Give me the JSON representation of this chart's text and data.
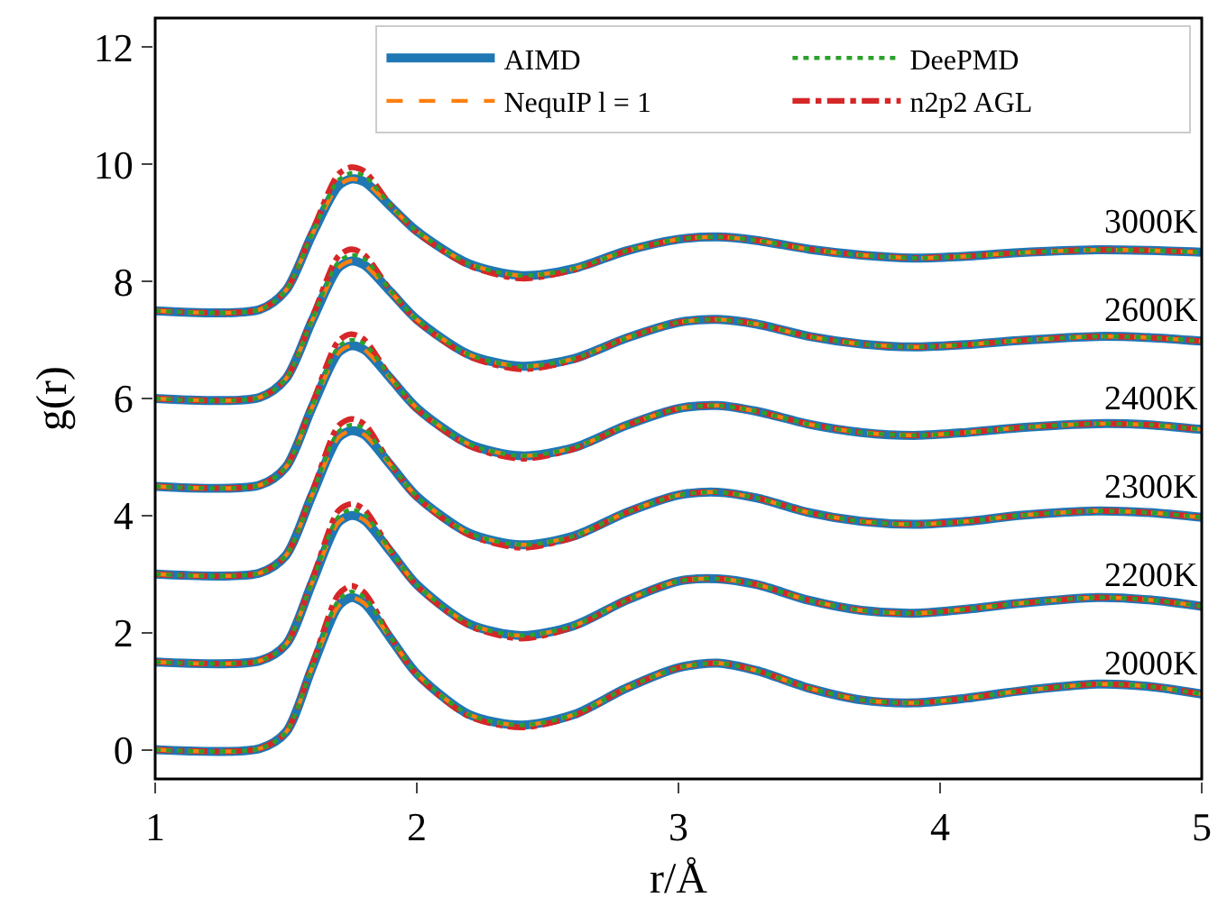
{
  "chart_data": {
    "type": "line",
    "xlabel": "r/Å",
    "ylabel": "g(r)",
    "x": [
      1.0,
      1.4,
      1.5,
      1.6,
      1.7,
      1.75,
      1.8,
      1.9,
      2.0,
      2.2,
      2.4,
      2.6,
      2.8,
      3.0,
      3.15,
      3.3,
      3.5,
      3.7,
      3.9,
      4.1,
      4.3,
      4.6,
      4.8,
      5.0
    ],
    "xlim": [
      1,
      5
    ],
    "xticks": [
      1,
      2,
      3,
      4,
      5
    ],
    "ylim": [
      -0.5,
      12.5
    ],
    "yticks": [
      0,
      2,
      4,
      6,
      8,
      10,
      12
    ],
    "legend": "top right",
    "marker": "none",
    "series": [
      {
        "name": "AIMD",
        "color": "#1f77b4",
        "line_style": "solid",
        "values": [
          0,
          0.02,
          0.3,
          1.4,
          2.45,
          2.6,
          2.5,
          1.9,
          1.3,
          0.6,
          0.42,
          0.6,
          1.05,
          1.4,
          1.48,
          1.35,
          1.05,
          0.85,
          0.8,
          0.88,
          1.0,
          1.12,
          1.08,
          0.95
        ]
      },
      {
        "color": "#1f77b4",
        "line_style": "solid",
        "values": [
          1.5,
          1.52,
          1.8,
          2.85,
          3.88,
          4.0,
          3.92,
          3.38,
          2.82,
          2.15,
          1.95,
          2.12,
          2.55,
          2.88,
          2.92,
          2.82,
          2.55,
          2.38,
          2.33,
          2.4,
          2.5,
          2.6,
          2.56,
          2.45
        ]
      },
      {
        "color": "#1f77b4",
        "line_style": "solid",
        "values": [
          3,
          3.02,
          3.32,
          4.35,
          5.33,
          5.45,
          5.38,
          4.86,
          4.33,
          3.7,
          3.5,
          3.65,
          4.05,
          4.35,
          4.4,
          4.3,
          4.05,
          3.9,
          3.85,
          3.9,
          4.0,
          4.08,
          4.05,
          3.97
        ]
      },
      {
        "color": "#1f77b4",
        "line_style": "solid",
        "values": [
          4.5,
          4.52,
          4.83,
          5.85,
          6.78,
          6.9,
          6.83,
          6.34,
          5.84,
          5.22,
          5.02,
          5.16,
          5.54,
          5.83,
          5.88,
          5.78,
          5.56,
          5.42,
          5.37,
          5.42,
          5.5,
          5.57,
          5.55,
          5.47
        ]
      },
      {
        "color": "#1f77b4",
        "line_style": "solid",
        "values": [
          6,
          6.02,
          6.34,
          7.33,
          8.23,
          8.35,
          8.28,
          7.82,
          7.35,
          6.75,
          6.55,
          6.68,
          7.03,
          7.3,
          7.35,
          7.27,
          7.06,
          6.93,
          6.88,
          6.92,
          6.99,
          7.06,
          7.04,
          6.98
        ]
      },
      {
        "color": "#1f77b4",
        "line_style": "solid",
        "values": [
          7.5,
          7.52,
          7.85,
          8.8,
          9.63,
          9.75,
          9.7,
          9.28,
          8.86,
          8.3,
          8.1,
          8.22,
          8.52,
          8.72,
          8.76,
          8.7,
          8.55,
          8.45,
          8.4,
          8.43,
          8.49,
          8.54,
          8.53,
          8.5
        ]
      },
      {
        "name": "DeePMD",
        "color": "#2ca02c",
        "line_style": "dotted",
        "values": [
          0,
          0.02,
          0.3,
          1.42,
          2.55,
          2.7,
          2.6,
          1.92,
          1.3,
          0.6,
          0.42,
          0.6,
          1.05,
          1.4,
          1.48,
          1.35,
          1.05,
          0.85,
          0.8,
          0.88,
          1.0,
          1.12,
          1.08,
          0.95
        ]
      },
      {
        "color": "#2ca02c",
        "line_style": "dotted",
        "values": [
          1.5,
          1.52,
          1.8,
          2.87,
          3.98,
          4.1,
          4.02,
          3.4,
          2.82,
          2.15,
          1.95,
          2.12,
          2.55,
          2.88,
          2.92,
          2.82,
          2.55,
          2.38,
          2.33,
          2.4,
          2.5,
          2.6,
          2.56,
          2.45
        ]
      },
      {
        "color": "#2ca02c",
        "line_style": "dotted",
        "values": [
          3,
          3.02,
          3.32,
          4.37,
          5.43,
          5.55,
          5.48,
          4.88,
          4.33,
          3.7,
          3.5,
          3.65,
          4.05,
          4.35,
          4.4,
          4.3,
          4.05,
          3.9,
          3.85,
          3.9,
          4.0,
          4.08,
          4.05,
          3.97
        ]
      },
      {
        "color": "#2ca02c",
        "line_style": "dotted",
        "values": [
          4.5,
          4.52,
          4.83,
          5.87,
          6.88,
          7.0,
          6.93,
          6.36,
          5.84,
          5.22,
          5.02,
          5.16,
          5.54,
          5.83,
          5.88,
          5.78,
          5.56,
          5.42,
          5.37,
          5.42,
          5.5,
          5.57,
          5.55,
          5.47
        ]
      },
      {
        "color": "#2ca02c",
        "line_style": "dotted",
        "values": [
          6,
          6.02,
          6.34,
          7.35,
          8.33,
          8.45,
          8.38,
          7.84,
          7.35,
          6.75,
          6.55,
          6.68,
          7.03,
          7.3,
          7.35,
          7.27,
          7.06,
          6.93,
          6.88,
          6.92,
          6.99,
          7.06,
          7.04,
          6.98
        ]
      },
      {
        "color": "#2ca02c",
        "line_style": "dotted",
        "values": [
          7.5,
          7.52,
          7.85,
          8.82,
          9.73,
          9.85,
          9.8,
          9.3,
          8.86,
          8.3,
          8.1,
          8.22,
          8.52,
          8.72,
          8.76,
          8.7,
          8.55,
          8.45,
          8.4,
          8.43,
          8.49,
          8.54,
          8.53,
          8.5
        ]
      },
      {
        "name": "NequIP l = 1",
        "color": "#ff7f0e",
        "line_style": "dashed",
        "values": [
          0,
          0.02,
          0.3,
          1.4,
          2.45,
          2.6,
          2.5,
          1.9,
          1.3,
          0.6,
          0.42,
          0.6,
          1.05,
          1.4,
          1.48,
          1.35,
          1.05,
          0.85,
          0.8,
          0.88,
          1.0,
          1.12,
          1.08,
          0.95
        ]
      },
      {
        "color": "#ff7f0e",
        "line_style": "dashed",
        "values": [
          1.5,
          1.52,
          1.8,
          2.85,
          3.88,
          4.0,
          3.92,
          3.38,
          2.82,
          2.15,
          1.95,
          2.12,
          2.55,
          2.88,
          2.92,
          2.82,
          2.55,
          2.38,
          2.33,
          2.4,
          2.5,
          2.6,
          2.56,
          2.45
        ]
      },
      {
        "color": "#ff7f0e",
        "line_style": "dashed",
        "values": [
          3,
          3.02,
          3.32,
          4.35,
          5.33,
          5.45,
          5.38,
          4.86,
          4.33,
          3.7,
          3.5,
          3.65,
          4.05,
          4.35,
          4.4,
          4.3,
          4.05,
          3.9,
          3.85,
          3.9,
          4.0,
          4.08,
          4.05,
          3.97
        ]
      },
      {
        "color": "#ff7f0e",
        "line_style": "dashed",
        "values": [
          4.5,
          4.52,
          4.83,
          5.85,
          6.78,
          6.9,
          6.83,
          6.34,
          5.84,
          5.22,
          5.02,
          5.16,
          5.54,
          5.83,
          5.88,
          5.78,
          5.56,
          5.42,
          5.37,
          5.42,
          5.5,
          5.57,
          5.55,
          5.47
        ]
      },
      {
        "color": "#ff7f0e",
        "line_style": "dashed",
        "values": [
          6,
          6.02,
          6.34,
          7.33,
          8.23,
          8.35,
          8.28,
          7.82,
          7.35,
          6.75,
          6.55,
          6.68,
          7.03,
          7.3,
          7.35,
          7.27,
          7.06,
          6.93,
          6.88,
          6.92,
          6.99,
          7.06,
          7.04,
          6.98
        ]
      },
      {
        "color": "#ff7f0e",
        "line_style": "dashed",
        "values": [
          7.5,
          7.52,
          7.85,
          8.8,
          9.63,
          9.75,
          9.7,
          9.28,
          8.86,
          8.3,
          8.1,
          8.22,
          8.52,
          8.72,
          8.76,
          8.7,
          8.55,
          8.45,
          8.4,
          8.43,
          8.49,
          8.54,
          8.53,
          8.5
        ]
      },
      {
        "name": "n2p2 AGL",
        "color": "#d62728",
        "line_style": "dashdot",
        "values": [
          0,
          0.02,
          0.3,
          1.45,
          2.65,
          2.8,
          2.68,
          1.92,
          1.28,
          0.57,
          0.38,
          0.58,
          1.05,
          1.4,
          1.48,
          1.35,
          1.05,
          0.85,
          0.8,
          0.88,
          1.0,
          1.12,
          1.08,
          0.95
        ]
      },
      {
        "color": "#d62728",
        "line_style": "dashdot",
        "values": [
          1.5,
          1.52,
          1.8,
          2.9,
          4.08,
          4.2,
          4.1,
          3.4,
          2.8,
          2.12,
          1.9,
          2.1,
          2.55,
          2.88,
          2.92,
          2.82,
          2.55,
          2.38,
          2.33,
          2.4,
          2.5,
          2.6,
          2.56,
          2.45
        ]
      },
      {
        "color": "#d62728",
        "line_style": "dashdot",
        "values": [
          3,
          3.02,
          3.32,
          4.4,
          5.53,
          5.65,
          5.56,
          4.88,
          4.31,
          3.67,
          3.45,
          3.63,
          4.05,
          4.35,
          4.4,
          4.3,
          4.05,
          3.9,
          3.85,
          3.9,
          4.0,
          4.08,
          4.05,
          3.97
        ]
      },
      {
        "color": "#d62728",
        "line_style": "dashdot",
        "values": [
          4.5,
          4.52,
          4.83,
          5.9,
          6.98,
          7.1,
          7.0,
          6.36,
          5.82,
          5.19,
          4.97,
          5.14,
          5.54,
          5.83,
          5.88,
          5.78,
          5.56,
          5.42,
          5.37,
          5.42,
          5.5,
          5.57,
          5.55,
          5.47
        ]
      },
      {
        "color": "#d62728",
        "line_style": "dashdot",
        "values": [
          6,
          6.02,
          6.34,
          7.38,
          8.43,
          8.55,
          8.45,
          7.84,
          7.33,
          6.72,
          6.5,
          6.66,
          7.03,
          7.3,
          7.35,
          7.27,
          7.06,
          6.93,
          6.88,
          6.92,
          6.99,
          7.06,
          7.04,
          6.98
        ]
      },
      {
        "color": "#d62728",
        "line_style": "dashdot",
        "values": [
          7.5,
          7.52,
          7.85,
          8.85,
          9.83,
          9.95,
          9.88,
          9.3,
          8.84,
          8.27,
          8.05,
          8.2,
          8.52,
          8.72,
          8.76,
          8.7,
          8.55,
          8.45,
          8.4,
          8.43,
          8.49,
          8.54,
          8.53,
          8.5
        ]
      }
    ],
    "annotations": [
      "3000K",
      "2600K",
      "2400K",
      "2300K",
      "2200K",
      "2000K"
    ]
  }
}
